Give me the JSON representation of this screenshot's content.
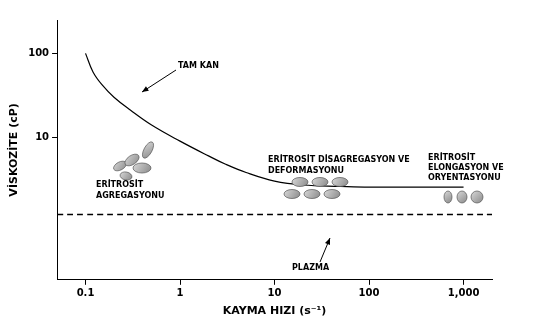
{
  "chart_data": {
    "type": "line",
    "x_label": "KAYMA HIZI (s⁻¹)",
    "y_label": "VİSKOZİTE (cP)",
    "log": true,
    "grid": false,
    "x": [
      0.05,
      0.1,
      0.12,
      0.15,
      0.2,
      0.3,
      0.5,
      1,
      2,
      3,
      5,
      10,
      20,
      50,
      100,
      1000,
      2000
    ],
    "series": [
      {
        "name": "TAM KAN",
        "color": "#000000",
        "line_style": "solid",
        "values": [
          null,
          100,
          60,
          42,
          30,
          21,
          14,
          9,
          6,
          4.8,
          3.8,
          3,
          2.7,
          2.6,
          2.55,
          2.55,
          null
        ]
      },
      {
        "name": "PLAZMA",
        "color": "#000000",
        "line_style": "dashed",
        "values": [
          1.2,
          1.2,
          1.2,
          1.2,
          1.2,
          1.2,
          1.2,
          1.2,
          1.2,
          1.2,
          1.2,
          1.2,
          1.2,
          1.2,
          1.2,
          1.2,
          1.2
        ]
      }
    ],
    "xlim": [
      0.05,
      2000
    ],
    "xticks": [
      0.1,
      1,
      10,
      100,
      {
        "value": 1000,
        "label": "1,000"
      }
    ],
    "ylim": [
      0.2,
      250
    ],
    "yticks": [
      10,
      100
    ],
    "annotations": [
      {
        "text": [
          "ERİTROSİT",
          "AGREGASYONU"
        ]
      },
      {
        "text": [
          "ERİTROSİT DİSAGREGASYON VE",
          "DEFORMASYONU"
        ]
      },
      {
        "text": [
          "ERİTROSİT",
          "ELONGASYON VE",
          "ORYENTASYONU"
        ]
      }
    ]
  }
}
